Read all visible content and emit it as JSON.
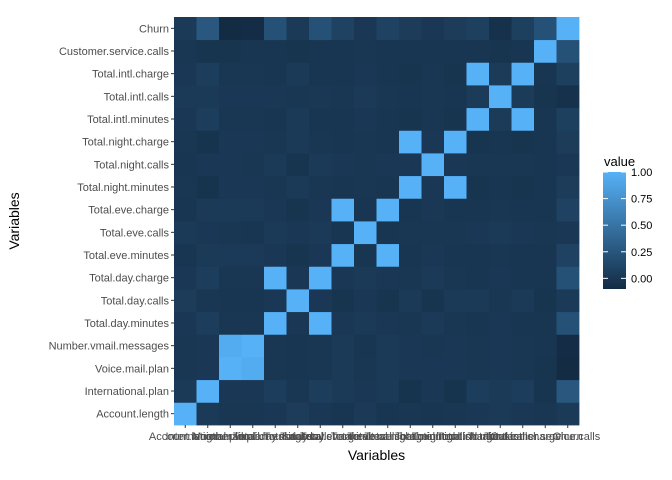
{
  "chart_data": {
    "type": "heatmap",
    "xlabel": "Variables",
    "ylabel": "Variables",
    "variables": [
      "Account.length",
      "International.plan",
      "Voice.mail.plan",
      "Number.vmail.messages",
      "Total.day.minutes",
      "Total.day.calls",
      "Total.day.charge",
      "Total.eve.minutes",
      "Total.eve.calls",
      "Total.eve.charge",
      "Total.night.minutes",
      "Total.night.calls",
      "Total.night.charge",
      "Total.intl.minutes",
      "Total.intl.calls",
      "Total.intl.charge",
      "Customer.service.calls",
      "Churn"
    ],
    "x_tick_labels": [
      "Account.length",
      "International.plan",
      "Voice.mail.plan",
      "Number.vmail.messages",
      "Total.day.minutes",
      "Total.day.calls",
      "Total.day.charge",
      "Total.eve.minutes",
      "Total.eve.calls",
      "Total.eve.charge",
      "Total.night.minutes",
      "Total.night.calls",
      "Total.night.charge",
      "Total.intl.minutes",
      "Total.intl.calls",
      "Total.intl.charge",
      "Customer.service.calls",
      "Churn"
    ],
    "values": [
      [
        1.0,
        0.02,
        0.0,
        0.0,
        0.01,
        0.04,
        0.01,
        -0.01,
        0.02,
        -0.01,
        0.0,
        -0.01,
        0.0,
        0.01,
        0.02,
        0.01,
        0.0,
        0.02
      ],
      [
        0.02,
        1.0,
        0.01,
        0.01,
        0.05,
        0.0,
        0.05,
        0.02,
        0.01,
        0.02,
        -0.03,
        0.01,
        -0.03,
        0.05,
        0.02,
        0.05,
        -0.02,
        0.26
      ],
      [
        0.0,
        0.01,
        1.0,
        0.96,
        0.0,
        -0.01,
        0.0,
        0.02,
        0.0,
        0.02,
        0.01,
        0.01,
        0.01,
        0.0,
        0.01,
        0.0,
        -0.02,
        -0.1
      ],
      [
        0.0,
        0.01,
        0.96,
        1.0,
        0.0,
        -0.01,
        0.0,
        0.02,
        -0.01,
        0.02,
        0.01,
        0.0,
        0.01,
        0.0,
        0.01,
        0.0,
        -0.01,
        -0.09
      ],
      [
        0.01,
        0.05,
        0.0,
        0.0,
        1.0,
        0.01,
        1.0,
        0.01,
        0.02,
        0.01,
        0.0,
        0.02,
        0.0,
        -0.01,
        0.01,
        -0.01,
        -0.01,
        0.21
      ],
      [
        0.04,
        0.0,
        -0.01,
        -0.01,
        0.01,
        1.0,
        0.01,
        -0.02,
        0.01,
        -0.02,
        0.02,
        -0.02,
        0.02,
        0.02,
        0.0,
        0.02,
        -0.02,
        0.02
      ],
      [
        0.01,
        0.05,
        0.0,
        0.0,
        1.0,
        0.01,
        1.0,
        0.01,
        0.02,
        0.01,
        0.0,
        0.02,
        0.0,
        -0.01,
        0.01,
        -0.01,
        -0.01,
        0.21
      ],
      [
        -0.01,
        0.02,
        0.02,
        0.02,
        0.01,
        -0.02,
        0.01,
        1.0,
        -0.01,
        1.0,
        -0.01,
        0.01,
        -0.01,
        -0.01,
        0.0,
        -0.01,
        -0.01,
        0.09
      ],
      [
        0.02,
        0.01,
        0.0,
        -0.01,
        0.02,
        0.01,
        0.02,
        -0.01,
        1.0,
        -0.01,
        0.0,
        0.0,
        0.0,
        0.01,
        0.02,
        0.01,
        0.0,
        0.01
      ],
      [
        -0.01,
        0.02,
        0.02,
        0.02,
        0.01,
        -0.02,
        0.01,
        1.0,
        -0.01,
        1.0,
        -0.01,
        0.01,
        -0.01,
        -0.01,
        0.0,
        -0.01,
        -0.01,
        0.09
      ],
      [
        0.0,
        -0.03,
        0.01,
        0.01,
        0.0,
        0.02,
        0.0,
        -0.01,
        0.0,
        -0.01,
        1.0,
        0.01,
        1.0,
        -0.02,
        -0.01,
        -0.02,
        -0.01,
        0.04
      ],
      [
        -0.01,
        0.01,
        0.01,
        0.0,
        0.02,
        -0.02,
        0.02,
        0.01,
        0.0,
        0.01,
        0.01,
        1.0,
        0.01,
        0.0,
        0.0,
        0.0,
        -0.01,
        0.01
      ],
      [
        0.0,
        -0.03,
        0.01,
        0.01,
        0.0,
        0.02,
        0.0,
        -0.01,
        0.0,
        -0.01,
        1.0,
        0.01,
        1.0,
        -0.02,
        -0.01,
        -0.02,
        -0.01,
        0.04
      ],
      [
        0.01,
        0.05,
        0.0,
        0.0,
        -0.01,
        0.02,
        -0.01,
        -0.01,
        0.01,
        -0.01,
        -0.02,
        0.0,
        -0.02,
        1.0,
        0.03,
        1.0,
        -0.01,
        0.07
      ],
      [
        0.02,
        0.02,
        0.01,
        0.01,
        0.01,
        0.0,
        0.01,
        0.0,
        0.02,
        0.0,
        -0.01,
        0.0,
        -0.01,
        0.03,
        1.0,
        0.03,
        -0.02,
        -0.05
      ],
      [
        0.01,
        0.05,
        0.0,
        0.0,
        -0.01,
        0.02,
        -0.01,
        -0.01,
        0.01,
        -0.01,
        -0.02,
        0.0,
        -0.02,
        1.0,
        0.03,
        1.0,
        -0.01,
        0.07
      ],
      [
        0.0,
        -0.02,
        -0.02,
        -0.01,
        -0.01,
        -0.02,
        -0.01,
        -0.01,
        0.0,
        -0.01,
        -0.01,
        -0.01,
        -0.01,
        -0.01,
        -0.02,
        -0.01,
        1.0,
        0.21
      ],
      [
        0.02,
        0.26,
        -0.1,
        -0.09,
        0.21,
        0.02,
        0.21,
        0.09,
        0.01,
        0.09,
        0.04,
        0.01,
        0.04,
        0.07,
        -0.05,
        0.07,
        0.21,
        1.0
      ]
    ],
    "legend": {
      "title": "value",
      "ticks": [
        "1.00",
        "0.75",
        "0.50",
        "0.25",
        "0.00"
      ],
      "tick_values": [
        1.0,
        0.75,
        0.5,
        0.25,
        0.0
      ],
      "range": [
        -0.1,
        1.0
      ],
      "placement": "right"
    },
    "colors": {
      "low": "#132b43",
      "high": "#56b1f7",
      "panel_background": "#ebebeb"
    },
    "grid": false
  }
}
